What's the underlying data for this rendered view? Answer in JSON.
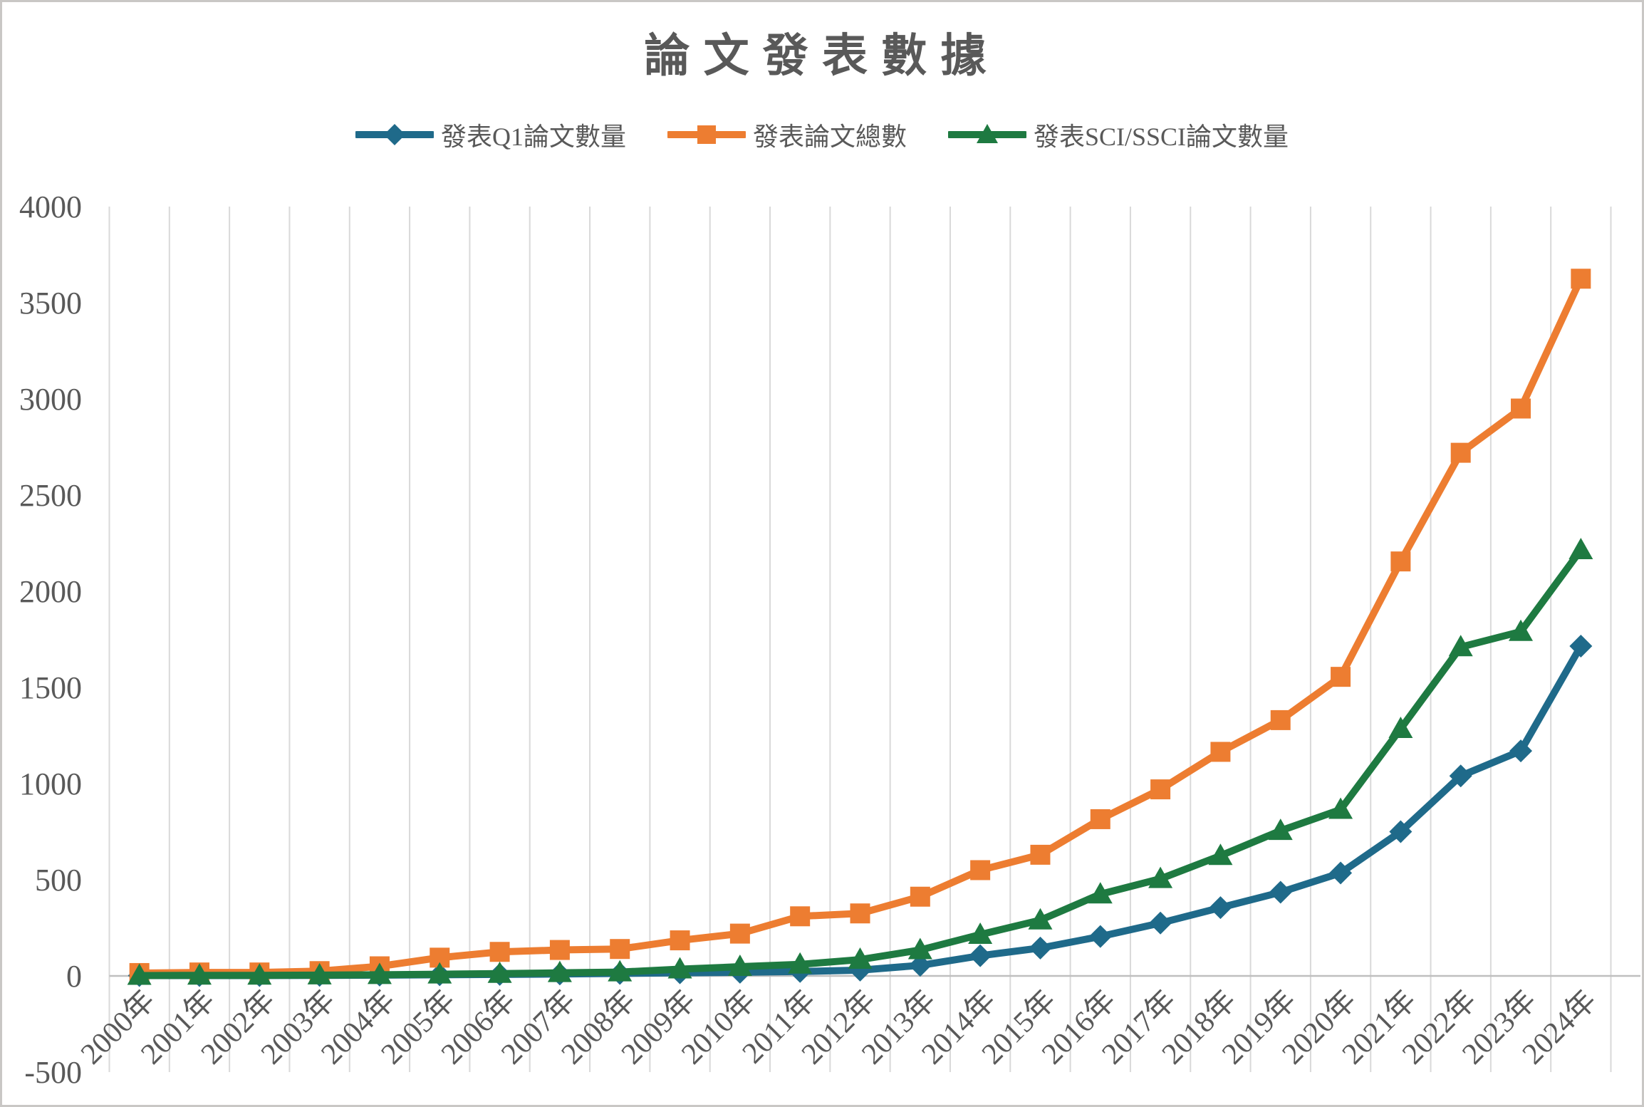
{
  "title": "論文發表數據",
  "chart_data": {
    "type": "line",
    "title": "論文發表數據",
    "categories": [
      "2000年",
      "2001年",
      "2002年",
      "2003年",
      "2004年",
      "2005年",
      "2006年",
      "2007年",
      "2008年",
      "2009年",
      "2010年",
      "2011年",
      "2012年",
      "2013年",
      "2014年",
      "2015年",
      "2016年",
      "2017年",
      "2018年",
      "2019年",
      "2020年",
      "2021年",
      "2022年",
      "2023年",
      "2024年"
    ],
    "series": [
      {
        "name": "發表Q1論文數量",
        "marker": "diamond",
        "color": "#1F6A8A",
        "values": [
          2,
          2,
          2,
          3,
          4,
          6,
          8,
          10,
          13,
          16,
          19,
          23,
          30,
          55,
          105,
          145,
          205,
          275,
          355,
          435,
          535,
          750,
          1040,
          1170,
          1715
        ]
      },
      {
        "name": "發表論文總數",
        "marker": "square",
        "color": "#ED7D31",
        "values": [
          15,
          18,
          18,
          25,
          50,
          95,
          125,
          135,
          140,
          185,
          220,
          310,
          325,
          412,
          550,
          630,
          815,
          970,
          1165,
          1330,
          1555,
          2155,
          2720,
          2950,
          3625
        ]
      },
      {
        "name": "發表SCI/SSCI論文數量",
        "marker": "triangle",
        "color": "#1E7A41",
        "values": [
          2,
          3,
          3,
          4,
          6,
          9,
          12,
          16,
          20,
          35,
          48,
          60,
          85,
          135,
          215,
          290,
          425,
          505,
          625,
          755,
          865,
          1285,
          1710,
          1790,
          2215
        ]
      }
    ],
    "y_ticks": [
      4000,
      3500,
      3000,
      2500,
      2000,
      1500,
      1000,
      500,
      0,
      -500
    ],
    "ylim": [
      -500,
      4000
    ],
    "grid": "vertical",
    "legend_position": "top",
    "colors": {
      "axis_text": "#595959",
      "gridline": "#D9D9D9",
      "axis_line": "#BFBFBF",
      "background": "#FFFFFF"
    }
  }
}
